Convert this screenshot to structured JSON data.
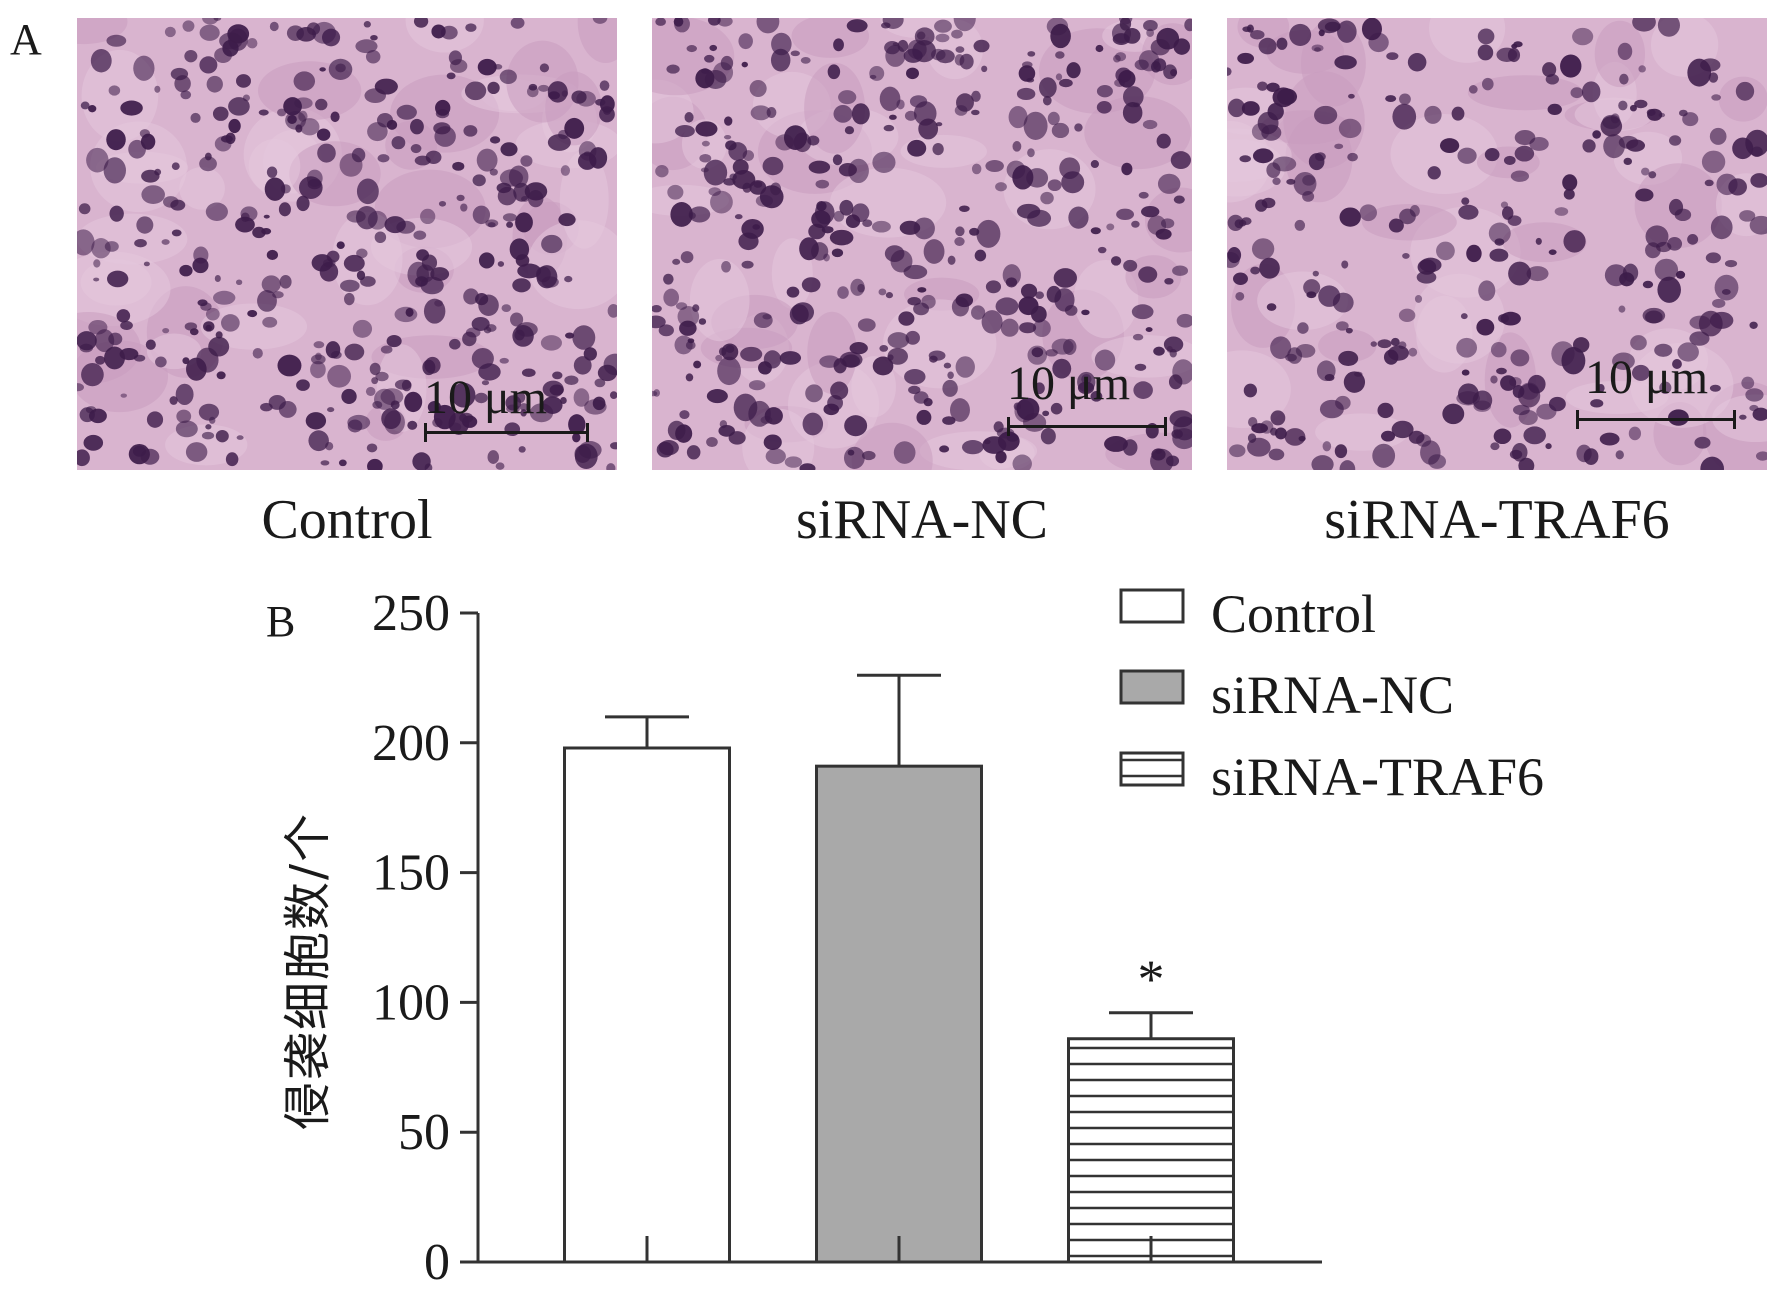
{
  "panels": {
    "a": {
      "letter": "A"
    },
    "b": {
      "letter": "B"
    }
  },
  "micrographs": [
    {
      "caption": "Control",
      "scale_label": "10 μm"
    },
    {
      "caption": "siRNA-NC",
      "scale_label": "10 μm"
    },
    {
      "caption": "siRNA-TRAF6",
      "scale_label": "10 μm"
    }
  ],
  "colors": {
    "stain_background": "#d9b4cf",
    "stain_nuclei": "#3d1c4a",
    "bar_control": "#ffffff",
    "bar_sirna_nc": "#a9a9a9",
    "axis": "#333333"
  },
  "chart_data": {
    "type": "bar",
    "categories": [
      "Control",
      "siRNA-NC",
      "siRNA-TRAF6"
    ],
    "values": [
      198,
      191,
      86
    ],
    "errors": [
      12,
      35,
      10
    ],
    "patterns": [
      "solid-white",
      "solid-gray",
      "horizontal-stripes"
    ],
    "ylabel": "侵袭细胞数/个",
    "xlabel": "",
    "ylim": [
      0,
      250
    ],
    "yticks": [
      0,
      50,
      100,
      150,
      200,
      250
    ],
    "annotations": [
      {
        "category": "siRNA-TRAF6",
        "text": "*"
      }
    ],
    "legend": {
      "placement": "top-right",
      "entries": [
        "Control",
        "siRNA-NC",
        "siRNA-TRAF6"
      ]
    },
    "grid": false
  }
}
